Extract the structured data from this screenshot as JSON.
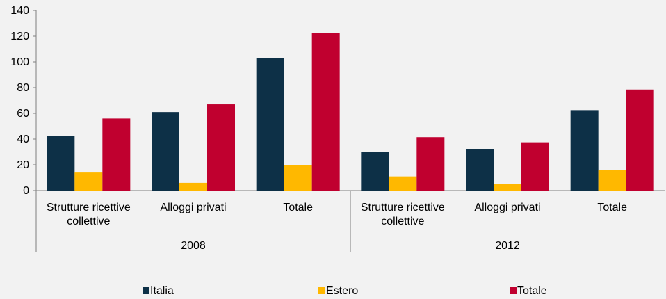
{
  "chart_data": {
    "type": "bar",
    "groups": [
      {
        "label": "2008",
        "categories": [
          "Strutture ricettive collettive",
          "Alloggi privati",
          "Totale"
        ],
        "category_lines": [
          [
            "Strutture ricettive",
            "collettive"
          ],
          [
            "Alloggi privati"
          ],
          [
            "Totale"
          ]
        ]
      },
      {
        "label": "2012",
        "categories": [
          "Strutture ricettive collettive",
          "Alloggi privati",
          "Totale"
        ],
        "category_lines": [
          [
            "Strutture ricettive",
            "collettive"
          ],
          [
            "Alloggi privati"
          ],
          [
            "Totale"
          ]
        ]
      }
    ],
    "series": [
      {
        "name": "Italia",
        "color": "#0d3047",
        "values": [
          42.5,
          61,
          103,
          30,
          32,
          62.5
        ]
      },
      {
        "name": "Estero",
        "color": "#ffb800",
        "values": [
          14,
          6,
          20,
          11,
          5,
          16
        ]
      },
      {
        "name": "Totale",
        "color": "#c0002f",
        "values": [
          56,
          67,
          122.5,
          41.5,
          37.5,
          78.5
        ]
      }
    ],
    "ylim": [
      0,
      140
    ],
    "yticks": [
      "0",
      "20",
      "40",
      "60",
      "80",
      "100",
      "120",
      "140"
    ],
    "grid": false,
    "legend_position": "bottom"
  }
}
